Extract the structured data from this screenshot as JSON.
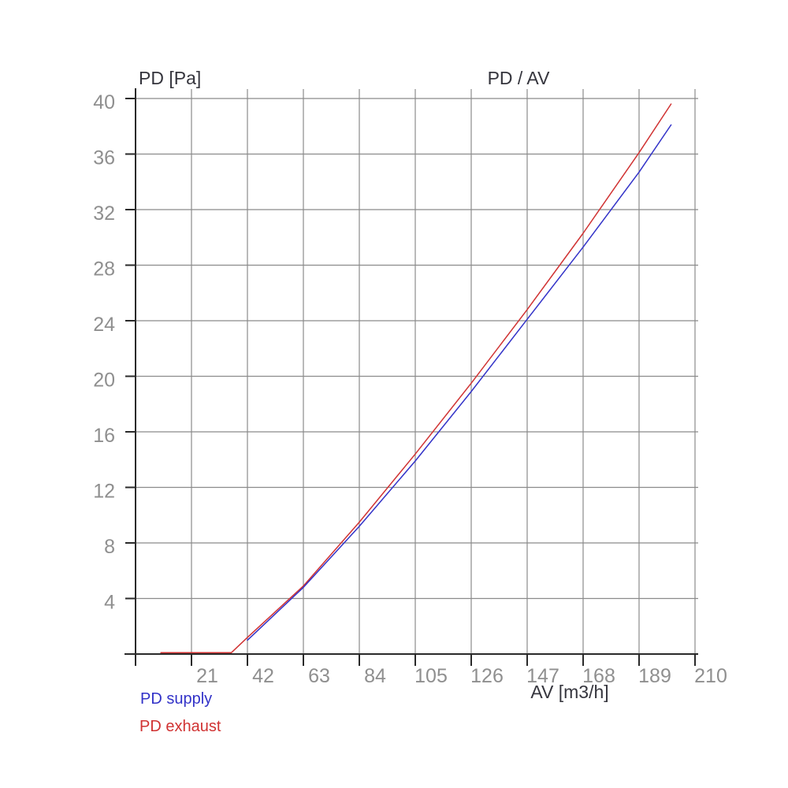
{
  "title": "PD / AV",
  "colors": {
    "supply": "#3232c8",
    "exhaust": "#d03232",
    "grid": "#8b8b8b",
    "axis": "#2a2a2a",
    "tick_text": "#8f8f8f",
    "title_text": "#35353d",
    "background": "#ffffff"
  },
  "legend": [
    {
      "label": "PD supply",
      "color": "#3232c8"
    },
    {
      "label": "PD exhaust",
      "color": "#d03232"
    }
  ],
  "chart_data": {
    "type": "line",
    "title": "PD / AV",
    "xlabel": "AV [m3/h]",
    "ylabel": "PD [Pa]",
    "xlim": [
      0,
      210
    ],
    "ylim": [
      0,
      40
    ],
    "x_ticks": [
      21,
      42,
      63,
      84,
      105,
      126,
      147,
      168,
      189,
      210
    ],
    "y_ticks": [
      4,
      8,
      12,
      16,
      20,
      24,
      28,
      32,
      36,
      40
    ],
    "grid": true,
    "legend_position": "bottom-left",
    "series": [
      {
        "name": "PD supply",
        "color": "#3232c8",
        "points": [
          [
            42,
            1.0
          ],
          [
            63,
            4.8
          ],
          [
            84,
            9.2
          ],
          [
            105,
            13.9
          ],
          [
            126,
            18.9
          ],
          [
            147,
            24.1
          ],
          [
            168,
            29.3
          ],
          [
            189,
            34.7
          ],
          [
            201,
            38.1
          ]
        ]
      },
      {
        "name": "PD exhaust",
        "color": "#d03232",
        "points": [
          [
            9.5,
            0.1
          ],
          [
            36,
            0.1
          ],
          [
            42,
            1.2
          ],
          [
            63,
            4.9
          ],
          [
            84,
            9.5
          ],
          [
            105,
            14.4
          ],
          [
            126,
            19.5
          ],
          [
            147,
            24.8
          ],
          [
            168,
            30.3
          ],
          [
            189,
            36.1
          ],
          [
            201,
            39.6
          ]
        ]
      }
    ]
  }
}
